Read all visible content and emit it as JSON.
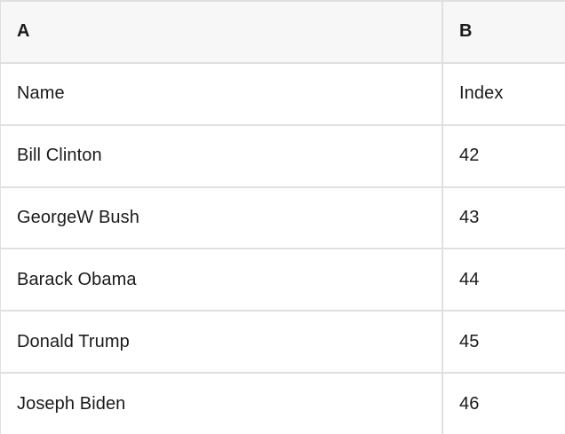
{
  "table": {
    "columns": [
      {
        "letter": "A"
      },
      {
        "letter": "B"
      }
    ],
    "rows": [
      [
        "Name",
        "Index"
      ],
      [
        "Bill Clinton",
        "42"
      ],
      [
        "GeorgeW Bush",
        "43"
      ],
      [
        "Barack Obama",
        "44"
      ],
      [
        "Donald Trump",
        "45"
      ],
      [
        "Joseph Biden",
        "46"
      ]
    ],
    "colors": {
      "header_bg": "#f7f7f7",
      "row_bg": "#ffffff",
      "border": "#e0e0e0",
      "text": "#1a1a1a"
    }
  }
}
